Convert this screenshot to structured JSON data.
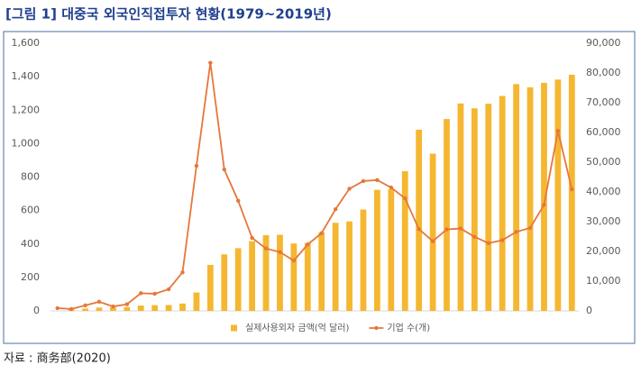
{
  "chart_data": {
    "type": "bar",
    "title": "[그림 1] 대중국 외국인직접투자 현황(1979~2019년)",
    "source": "자료 : 商务部(2020)",
    "categories": [
      null,
      null,
      null,
      null,
      null,
      null,
      null,
      null,
      null,
      null,
      null,
      null,
      null,
      null,
      null,
      null,
      null,
      null,
      null,
      null,
      null,
      null,
      null,
      null,
      null,
      null,
      null,
      null,
      null,
      null,
      null,
      null,
      null,
      null,
      null,
      null,
      null,
      null
    ],
    "series": [
      {
        "name": "실제사용외자 금액(억 달러)",
        "type": "bar",
        "axis": "y",
        "color": "#f5b731",
        "values": [
          0,
          9,
          14,
          20,
          22,
          23,
          32,
          34,
          35,
          44,
          110,
          275,
          338,
          375,
          417,
          453,
          455,
          403,
          407,
          469,
          527,
          535,
          606,
          724,
          727,
          835,
          1083,
          940,
          1147,
          1240,
          1211,
          1239,
          1285,
          1356,
          1337,
          1363,
          1383,
          1412
        ]
      },
      {
        "name": "기업 수(개)",
        "type": "line",
        "axis": "y2",
        "color": "#e5773b",
        "values": [
          922,
          638,
          1856,
          3073,
          1498,
          2233,
          5945,
          5779,
          7273,
          12978,
          48764,
          83437,
          47549,
          37011,
          24556,
          21001,
          19799,
          16918,
          22347,
          26140,
          34171,
          41081,
          43664,
          44001,
          41485,
          37871,
          27514,
          23435,
          27406,
          27712,
          24925,
          22773,
          23778,
          26575,
          27900,
          35652,
          60533,
          40888
        ]
      }
    ],
    "ylim": [
      0,
      1600
    ],
    "yticks": [
      0,
      200,
      400,
      600,
      800,
      {
        "value": 1000,
        "label": "1,000"
      },
      {
        "value": 1200,
        "label": "1,200"
      },
      {
        "value": 1400,
        "label": "1,400"
      },
      {
        "value": 1600,
        "label": "1,600"
      }
    ],
    "y2lim": [
      0,
      90000
    ],
    "y2ticks": [
      0,
      {
        "value": 10000,
        "label": "10,000"
      },
      {
        "value": 20000,
        "label": "20,000"
      },
      {
        "value": 30000,
        "label": "30,000"
      },
      {
        "value": 40000,
        "label": "40,000"
      },
      {
        "value": 50000,
        "label": "50,000"
      },
      {
        "value": 60000,
        "label": "60,000"
      },
      {
        "value": 70000,
        "label": "70,000"
      },
      {
        "value": 80000,
        "label": "80,000"
      },
      {
        "value": 90000,
        "label": "90,000"
      }
    ],
    "grid": false,
    "legend": "bottom"
  }
}
